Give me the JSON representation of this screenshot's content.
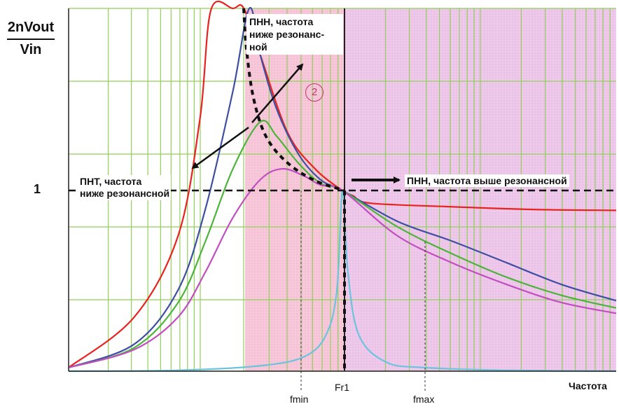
{
  "chart_data": {
    "type": "line",
    "title": "",
    "ylabel_top": "2nVout",
    "ylabel_bottom": "Vin",
    "xlabel": "Частота",
    "xscale": "log",
    "y_ticks": [
      "1"
    ],
    "x_markers": [
      "fmin",
      "Fr1",
      "fmax"
    ],
    "regions": [
      {
        "name": "ПНН, частота ниже резонансной",
        "color": "#f7c8d6"
      },
      {
        "name": "ПНН, частота выше резонансной",
        "color": "#ecc6ea"
      }
    ],
    "annotations": {
      "zcs_below_line1": "ПНТ, частота",
      "zcs_below_line2": "ниже резонансной",
      "zvs_below_line1": "ПНН, частота",
      "zvs_below_line2": "ниже резонанс-",
      "zvs_below_line3": "ной",
      "zvs_above": "ПНН, частота выше резонансной",
      "circle_label": "2"
    },
    "series": [
      {
        "color": "#e8231f",
        "x": [
          0.0,
          0.12,
          0.2,
          0.24,
          0.26,
          0.3,
          0.32,
          0.35,
          0.4,
          0.45,
          0.5,
          0.52,
          0.55,
          0.7,
          0.85,
          1.0
        ],
        "y": [
          0.02,
          0.3,
          0.75,
          1.4,
          2.0,
          4.5,
          2.5,
          1.75,
          1.32,
          1.12,
          1.0,
          0.97,
          0.93,
          0.91,
          0.895,
          0.89
        ]
      },
      {
        "color": "#3e4fa3",
        "x": [
          0.0,
          0.12,
          0.2,
          0.25,
          0.3,
          0.33,
          0.35,
          0.38,
          0.42,
          0.46,
          0.5,
          0.6,
          0.7,
          0.8,
          0.9,
          1.0
        ],
        "y": [
          0.02,
          0.15,
          0.45,
          0.9,
          1.55,
          2.1,
          1.75,
          1.45,
          1.2,
          1.06,
          1.0,
          0.83,
          0.72,
          0.6,
          0.48,
          0.39
        ]
      },
      {
        "color": "#4cb43a",
        "x": [
          0.0,
          0.12,
          0.2,
          0.25,
          0.3,
          0.35,
          0.38,
          0.42,
          0.46,
          0.5,
          0.6,
          0.7,
          0.8,
          0.9,
          1.0
        ],
        "y": [
          0.02,
          0.13,
          0.38,
          0.72,
          1.12,
          1.38,
          1.3,
          1.15,
          1.04,
          1.0,
          0.8,
          0.65,
          0.52,
          0.42,
          0.35
        ]
      },
      {
        "color": "#c14fbf",
        "x": [
          0.0,
          0.12,
          0.2,
          0.25,
          0.3,
          0.35,
          0.39,
          0.43,
          0.46,
          0.5,
          0.6,
          0.7,
          0.8,
          0.9,
          1.0
        ],
        "y": [
          0.02,
          0.12,
          0.3,
          0.55,
          0.85,
          1.06,
          1.12,
          1.08,
          1.03,
          1.0,
          0.75,
          0.6,
          0.48,
          0.38,
          0.32
        ]
      },
      {
        "color": "#6cc3dc",
        "x": [
          0.0,
          0.2,
          0.35,
          0.43,
          0.47,
          0.49,
          0.5,
          0.51,
          0.53,
          0.58,
          0.65,
          0.8,
          1.0
        ],
        "y": [
          0.0,
          0.005,
          0.03,
          0.08,
          0.2,
          0.45,
          1.0,
          0.55,
          0.2,
          0.05,
          0.02,
          0.005,
          0.0
        ]
      }
    ]
  }
}
